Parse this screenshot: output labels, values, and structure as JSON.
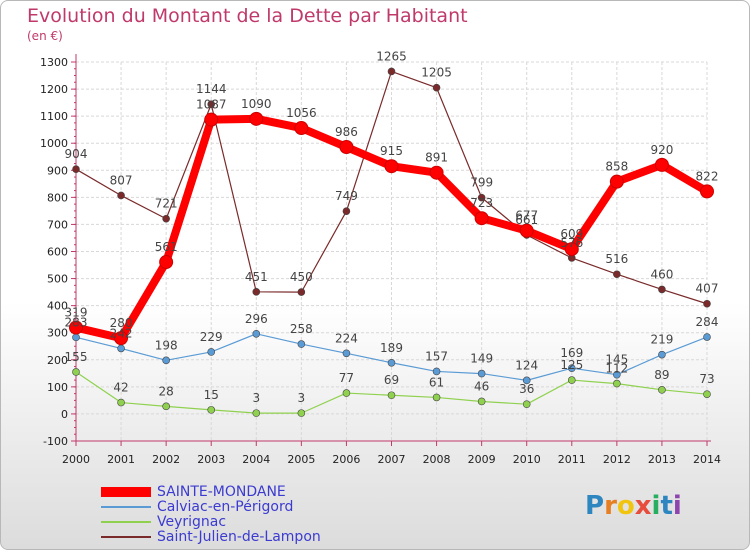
{
  "title": "Evolution du Montant de la Dette par Habitant",
  "subtitle": "(en €)",
  "logo": "Proxiti",
  "chart_data": {
    "type": "line",
    "x": [
      "2000",
      "2001",
      "2002",
      "2003",
      "2004",
      "2005",
      "2006",
      "2007",
      "2008",
      "2009",
      "2010",
      "2011",
      "2012",
      "2013",
      "2014"
    ],
    "y_ticks": [
      "-100",
      "0",
      "100",
      "200",
      "300",
      "400",
      "500",
      "600",
      "700",
      "800",
      "900",
      "1000",
      "1100",
      "1200",
      "1300"
    ],
    "ylim": [
      -100,
      1300
    ],
    "grid": true,
    "legend_position": "bottom-left",
    "series": [
      {
        "name": "SAINTE-MONDANE",
        "color": "#ff0000",
        "values": [
          319,
          280,
          561,
          1087,
          1090,
          1056,
          986,
          915,
          891,
          723,
          677,
          609,
          858,
          920,
          822
        ]
      },
      {
        "name": "Calviac-en-Périgord",
        "color": "#5b9bd5",
        "values": [
          283,
          242,
          198,
          229,
          296,
          258,
          224,
          189,
          157,
          149,
          124,
          169,
          145,
          219,
          284
        ]
      },
      {
        "name": "Veyrignac",
        "color": "#8fd14f",
        "values": [
          155,
          42,
          28,
          15,
          3,
          3,
          77,
          69,
          61,
          46,
          36,
          125,
          112,
          89,
          73
        ]
      },
      {
        "name": "Saint-Julien-de-Lampon",
        "color": "#7a2a2a",
        "values": [
          904,
          807,
          721,
          1144,
          451,
          450,
          749,
          1265,
          1205,
          799,
          661,
          576,
          516,
          460,
          407
        ]
      }
    ]
  }
}
